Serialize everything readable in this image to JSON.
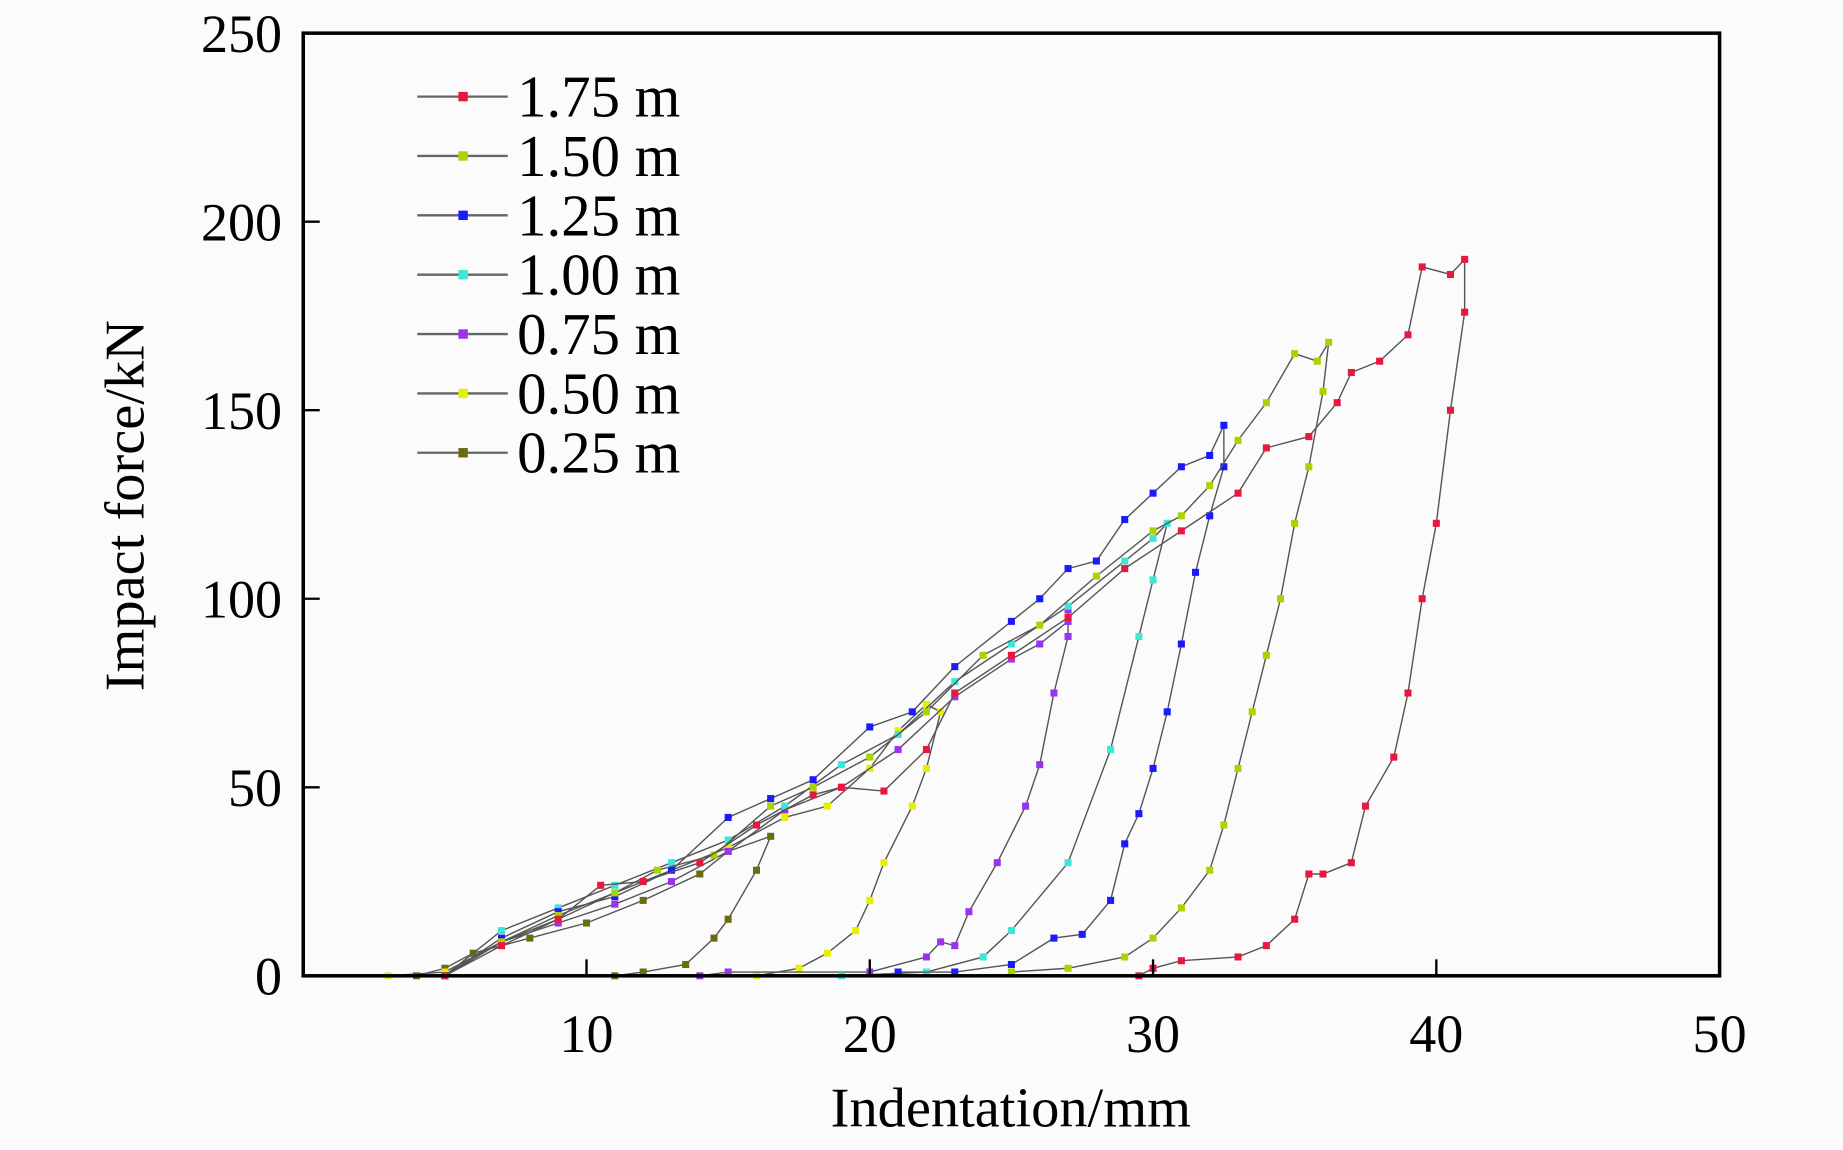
{
  "chart_data": {
    "type": "line",
    "title": "",
    "xlabel": "Indentation/mm",
    "ylabel": "Impact force/kN",
    "xlim": [
      0,
      50
    ],
    "ylim": [
      0,
      250
    ],
    "xticks": [
      10,
      20,
      30,
      40,
      50
    ],
    "yticks": [
      0,
      50,
      100,
      150,
      200,
      250
    ],
    "grid": false,
    "legend_position": "top-left",
    "series": [
      {
        "name": "1.75 m",
        "color": "#e8173f",
        "points": [
          [
            5,
            0
          ],
          [
            7,
            8
          ],
          [
            9,
            15
          ],
          [
            10.5,
            24
          ],
          [
            12,
            25
          ],
          [
            14,
            30
          ],
          [
            16,
            40
          ],
          [
            18,
            48
          ],
          [
            19,
            50
          ],
          [
            20.5,
            49
          ],
          [
            22,
            60
          ],
          [
            23,
            75
          ],
          [
            25,
            85
          ],
          [
            27,
            95
          ],
          [
            29,
            108
          ],
          [
            31,
            118
          ],
          [
            33,
            128
          ],
          [
            34,
            140
          ],
          [
            35.5,
            143
          ],
          [
            36.5,
            152
          ],
          [
            37,
            160
          ],
          [
            38,
            163
          ],
          [
            39,
            170
          ],
          [
            39.5,
            188
          ],
          [
            40.5,
            186
          ],
          [
            41,
            190
          ],
          [
            41,
            176
          ],
          [
            40.5,
            150
          ],
          [
            40,
            120
          ],
          [
            39.5,
            100
          ],
          [
            39,
            75
          ],
          [
            38.5,
            58
          ],
          [
            37.5,
            45
          ],
          [
            37,
            30
          ],
          [
            36,
            27
          ],
          [
            35.5,
            27
          ],
          [
            35,
            15
          ],
          [
            34,
            8
          ],
          [
            33,
            5
          ],
          [
            31,
            4
          ],
          [
            30,
            2
          ],
          [
            29.5,
            0
          ]
        ]
      },
      {
        "name": "1.50 m",
        "color": "#a8d400",
        "points": [
          [
            5,
            0
          ],
          [
            7,
            9
          ],
          [
            9,
            16
          ],
          [
            11,
            22
          ],
          [
            12.5,
            28
          ],
          [
            14.5,
            32
          ],
          [
            16.5,
            45
          ],
          [
            18,
            50
          ],
          [
            20,
            58
          ],
          [
            22,
            70
          ],
          [
            24,
            85
          ],
          [
            26,
            93
          ],
          [
            28,
            106
          ],
          [
            30,
            118
          ],
          [
            31,
            122
          ],
          [
            32,
            130
          ],
          [
            33,
            142
          ],
          [
            34,
            152
          ],
          [
            35,
            165
          ],
          [
            35.8,
            163
          ],
          [
            36.2,
            168
          ],
          [
            36,
            155
          ],
          [
            35.5,
            135
          ],
          [
            35,
            120
          ],
          [
            34.5,
            100
          ],
          [
            34,
            85
          ],
          [
            33.5,
            70
          ],
          [
            33,
            55
          ],
          [
            32.5,
            40
          ],
          [
            32,
            28
          ],
          [
            31,
            18
          ],
          [
            30,
            10
          ],
          [
            29,
            5
          ],
          [
            27,
            2
          ],
          [
            25,
            1
          ]
        ]
      },
      {
        "name": "1.25 m",
        "color": "#1a1aff",
        "points": [
          [
            5,
            0
          ],
          [
            7,
            10
          ],
          [
            9,
            17
          ],
          [
            11,
            21
          ],
          [
            13,
            28
          ],
          [
            15,
            42
          ],
          [
            16.5,
            47
          ],
          [
            18,
            52
          ],
          [
            20,
            66
          ],
          [
            21.5,
            70
          ],
          [
            23,
            82
          ],
          [
            25,
            94
          ],
          [
            26,
            100
          ],
          [
            27,
            108
          ],
          [
            28,
            110
          ],
          [
            29,
            121
          ],
          [
            30,
            128
          ],
          [
            31,
            135
          ],
          [
            32,
            138
          ],
          [
            32.5,
            146
          ],
          [
            32.5,
            135
          ],
          [
            32,
            122
          ],
          [
            31.5,
            107
          ],
          [
            31,
            88
          ],
          [
            30.5,
            70
          ],
          [
            30,
            55
          ],
          [
            29.5,
            43
          ],
          [
            29,
            35
          ],
          [
            28.5,
            20
          ],
          [
            27.5,
            11
          ],
          [
            26.5,
            10
          ],
          [
            25,
            3
          ],
          [
            23,
            1
          ],
          [
            21,
            1
          ]
        ]
      },
      {
        "name": "1.00 m",
        "color": "#3ee6d8",
        "points": [
          [
            5,
            0
          ],
          [
            7,
            12
          ],
          [
            9,
            18
          ],
          [
            11,
            24
          ],
          [
            13,
            30
          ],
          [
            15,
            36
          ],
          [
            17,
            45
          ],
          [
            19,
            56
          ],
          [
            21,
            64
          ],
          [
            23,
            78
          ],
          [
            25,
            88
          ],
          [
            27,
            98
          ],
          [
            29,
            110
          ],
          [
            30,
            116
          ],
          [
            30.5,
            120
          ],
          [
            30,
            105
          ],
          [
            29.5,
            90
          ],
          [
            28.5,
            60
          ],
          [
            27,
            30
          ],
          [
            25,
            12
          ],
          [
            24,
            5
          ],
          [
            22,
            1
          ],
          [
            19,
            0
          ]
        ]
      },
      {
        "name": "0.75 m",
        "color": "#9933ee",
        "points": [
          [
            5,
            0
          ],
          [
            7,
            9
          ],
          [
            9,
            14
          ],
          [
            11,
            19
          ],
          [
            13,
            25
          ],
          [
            15,
            33
          ],
          [
            17,
            44
          ],
          [
            19,
            50
          ],
          [
            21,
            60
          ],
          [
            23,
            74
          ],
          [
            25,
            84
          ],
          [
            26,
            88
          ],
          [
            27,
            94
          ],
          [
            27,
            97
          ],
          [
            27,
            90
          ],
          [
            26.5,
            75
          ],
          [
            26,
            56
          ],
          [
            25.5,
            45
          ],
          [
            24.5,
            30
          ],
          [
            23.5,
            17
          ],
          [
            23,
            8
          ],
          [
            22.5,
            9
          ],
          [
            22,
            5
          ],
          [
            20,
            1
          ],
          [
            15,
            1
          ],
          [
            14,
            0
          ]
        ]
      },
      {
        "name": "0.50 m",
        "color": "#e6f000",
        "points": [
          [
            3,
            0
          ],
          [
            5,
            1
          ],
          [
            7,
            9
          ],
          [
            9,
            15
          ],
          [
            11,
            22
          ],
          [
            13,
            28
          ],
          [
            15,
            34
          ],
          [
            17,
            42
          ],
          [
            18.5,
            45
          ],
          [
            20,
            55
          ],
          [
            21,
            65
          ],
          [
            22,
            72
          ],
          [
            22.5,
            70
          ],
          [
            22,
            55
          ],
          [
            21.5,
            45
          ],
          [
            20.5,
            30
          ],
          [
            20,
            20
          ],
          [
            19.5,
            12
          ],
          [
            18.5,
            6
          ],
          [
            17.5,
            2
          ],
          [
            16,
            0
          ]
        ]
      },
      {
        "name": "0.25 m",
        "color": "#6b6b10",
        "points": [
          [
            4,
            0
          ],
          [
            5,
            2
          ],
          [
            6,
            6
          ],
          [
            8,
            10
          ],
          [
            10,
            14
          ],
          [
            12,
            20
          ],
          [
            14,
            27
          ],
          [
            15,
            33
          ],
          [
            16.5,
            37
          ],
          [
            16,
            28
          ],
          [
            15,
            15
          ],
          [
            14.5,
            10
          ],
          [
            13.5,
            3
          ],
          [
            12,
            1
          ],
          [
            11,
            0
          ]
        ]
      }
    ]
  }
}
